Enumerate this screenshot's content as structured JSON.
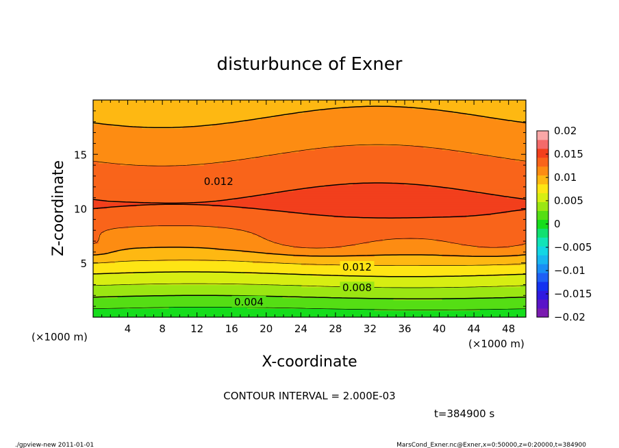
{
  "chart_data": {
    "type": "heatmap",
    "title": "disturbunce of Exner",
    "xlabel": "X-coordinate",
    "ylabel": "Z-coordinate",
    "x_unit": "(×1000 m)",
    "y_unit": "(×1000 m)",
    "xlim": [
      0,
      50
    ],
    "ylim": [
      0,
      20
    ],
    "x_ticks": [
      4,
      8,
      12,
      16,
      20,
      24,
      28,
      32,
      36,
      40,
      44,
      48
    ],
    "y_ticks": [
      5,
      10,
      15
    ],
    "colorbar": {
      "ticks": [
        "0.02",
        "0.015",
        "0.01",
        "0.005",
        "0",
        "−0.005",
        "−0.01",
        "−0.015",
        "−0.02"
      ],
      "levels": [
        -0.02,
        -0.018,
        -0.016,
        -0.014,
        -0.012,
        -0.01,
        -0.008,
        -0.006,
        -0.004,
        -0.002,
        0,
        0.002,
        0.004,
        0.006,
        0.008,
        0.01,
        0.012,
        0.014,
        0.016,
        0.018,
        0.02
      ],
      "colors": [
        "#7a1bb0",
        "#5a14c8",
        "#2f1ae0",
        "#1432f0",
        "#1f5ff5",
        "#198ef5",
        "#17b6f0",
        "#12d6e4",
        "#10e4b8",
        "#10e070",
        "#16dd1c",
        "#55de14",
        "#9be612",
        "#d7ee12",
        "#fee514",
        "#feb812",
        "#fd8c12",
        "#f9641a",
        "#f23f1c",
        "#f46a6a",
        "#f9a7a7"
      ]
    },
    "contour_labels": [
      "0.012",
      "0.012",
      "0.008",
      "0.004"
    ],
    "contour_interval": "CONTOUR INTERVAL = 2.000E-03",
    "time": "t=384900 s"
  },
  "footer": {
    "left": "./gpview-new   2011-01-01",
    "right": "MarsCond_Exner.nc@Exner,x=0:50000,z=0:20000,t=384900"
  }
}
